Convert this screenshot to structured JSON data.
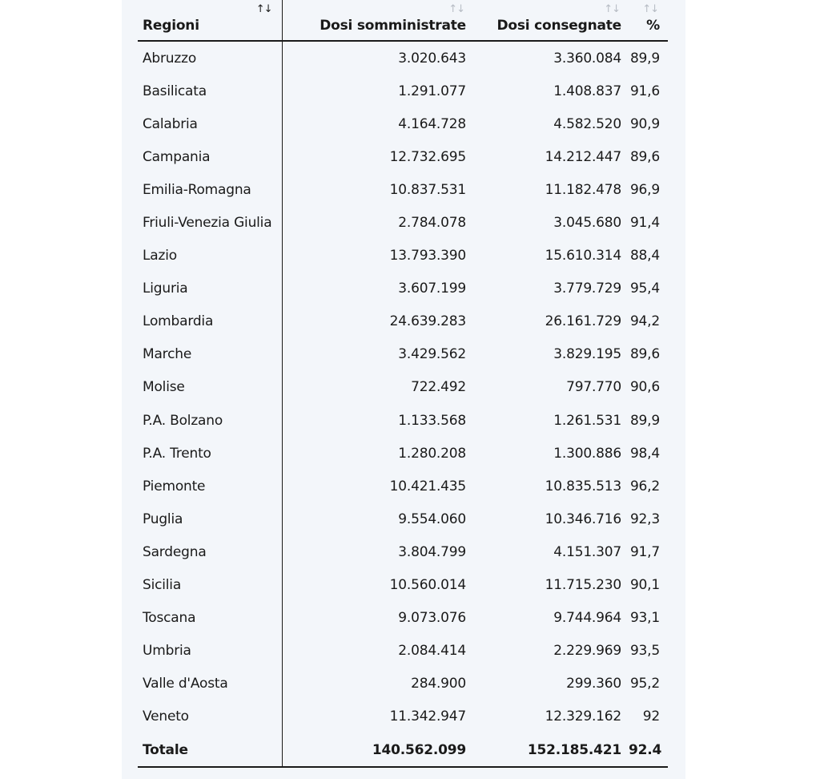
{
  "table": {
    "headers": {
      "region": "Regioni",
      "administered": "Dosi somministrate",
      "delivered": "Dosi consegnate",
      "percent": "%"
    },
    "sort_icon": "↑↓",
    "rows": [
      {
        "region": "Abruzzo",
        "administered": "3.020.643",
        "delivered": "3.360.084",
        "percent": "89,9"
      },
      {
        "region": "Basilicata",
        "administered": "1.291.077",
        "delivered": "1.408.837",
        "percent": "91,6"
      },
      {
        "region": "Calabria",
        "administered": "4.164.728",
        "delivered": "4.582.520",
        "percent": "90,9"
      },
      {
        "region": "Campania",
        "administered": "12.732.695",
        "delivered": "14.212.447",
        "percent": "89,6"
      },
      {
        "region": "Emilia-Romagna",
        "administered": "10.837.531",
        "delivered": "11.182.478",
        "percent": "96,9"
      },
      {
        "region": "Friuli-Venezia Giulia",
        "administered": "2.784.078",
        "delivered": "3.045.680",
        "percent": "91,4"
      },
      {
        "region": "Lazio",
        "administered": "13.793.390",
        "delivered": "15.610.314",
        "percent": "88,4"
      },
      {
        "region": "Liguria",
        "administered": "3.607.199",
        "delivered": "3.779.729",
        "percent": "95,4"
      },
      {
        "region": "Lombardia",
        "administered": "24.639.283",
        "delivered": "26.161.729",
        "percent": "94,2"
      },
      {
        "region": "Marche",
        "administered": "3.429.562",
        "delivered": "3.829.195",
        "percent": "89,6"
      },
      {
        "region": "Molise",
        "administered": "722.492",
        "delivered": "797.770",
        "percent": "90,6"
      },
      {
        "region": "P.A. Bolzano",
        "administered": "1.133.568",
        "delivered": "1.261.531",
        "percent": "89,9"
      },
      {
        "region": "P.A. Trento",
        "administered": "1.280.208",
        "delivered": "1.300.886",
        "percent": "98,4"
      },
      {
        "region": "Piemonte",
        "administered": "10.421.435",
        "delivered": "10.835.513",
        "percent": "96,2"
      },
      {
        "region": "Puglia",
        "administered": "9.554.060",
        "delivered": "10.346.716",
        "percent": "92,3"
      },
      {
        "region": "Sardegna",
        "administered": "3.804.799",
        "delivered": "4.151.307",
        "percent": "91,7"
      },
      {
        "region": "Sicilia",
        "administered": "10.560.014",
        "delivered": "11.715.230",
        "percent": "90,1"
      },
      {
        "region": "Toscana",
        "administered": "9.073.076",
        "delivered": "9.744.964",
        "percent": "93,1"
      },
      {
        "region": "Umbria",
        "administered": "2.084.414",
        "delivered": "2.229.969",
        "percent": "93,5"
      },
      {
        "region": "Valle d'Aosta",
        "administered": "284.900",
        "delivered": "299.360",
        "percent": "95,2"
      },
      {
        "region": "Veneto",
        "administered": "11.342.947",
        "delivered": "12.329.162",
        "percent": "92"
      }
    ],
    "total": {
      "region": "Totale",
      "administered": "140.562.099",
      "delivered": "152.185.421",
      "percent": "92.4"
    }
  }
}
